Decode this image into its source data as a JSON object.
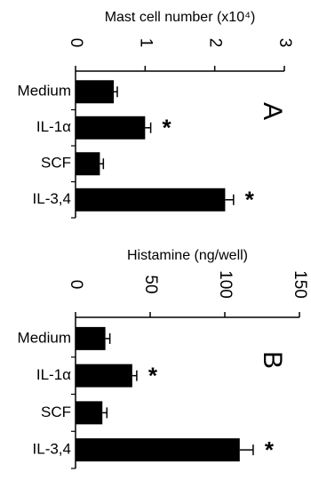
{
  "chart_data": [
    {
      "type": "bar",
      "panel_label": "A",
      "title": "Mast cell number (x10⁴)",
      "categories": [
        "Medium",
        "IL-1α",
        "SCF",
        "IL-3,4"
      ],
      "values": [
        0.55,
        1.0,
        0.35,
        2.15
      ],
      "errors": [
        0.05,
        0.08,
        0.05,
        0.12
      ],
      "significance": [
        "",
        "*",
        "",
        "*"
      ],
      "ylim": [
        0,
        3
      ],
      "ticks": [
        "0",
        "1",
        "2",
        "3"
      ],
      "tick_values": [
        0,
        1,
        2,
        3
      ]
    },
    {
      "type": "bar",
      "panel_label": "B",
      "title": "Histamine (ng/well)",
      "categories": [
        "Medium",
        "IL-1α",
        "SCF",
        "IL-3,4"
      ],
      "values": [
        20,
        38,
        18,
        110
      ],
      "errors": [
        3,
        3,
        3,
        9
      ],
      "significance": [
        "",
        "*",
        "",
        "*"
      ],
      "ylim": [
        0,
        150
      ],
      "ticks": [
        "0",
        "50",
        "100",
        "150"
      ],
      "tick_values": [
        0,
        50,
        100,
        150
      ]
    }
  ]
}
